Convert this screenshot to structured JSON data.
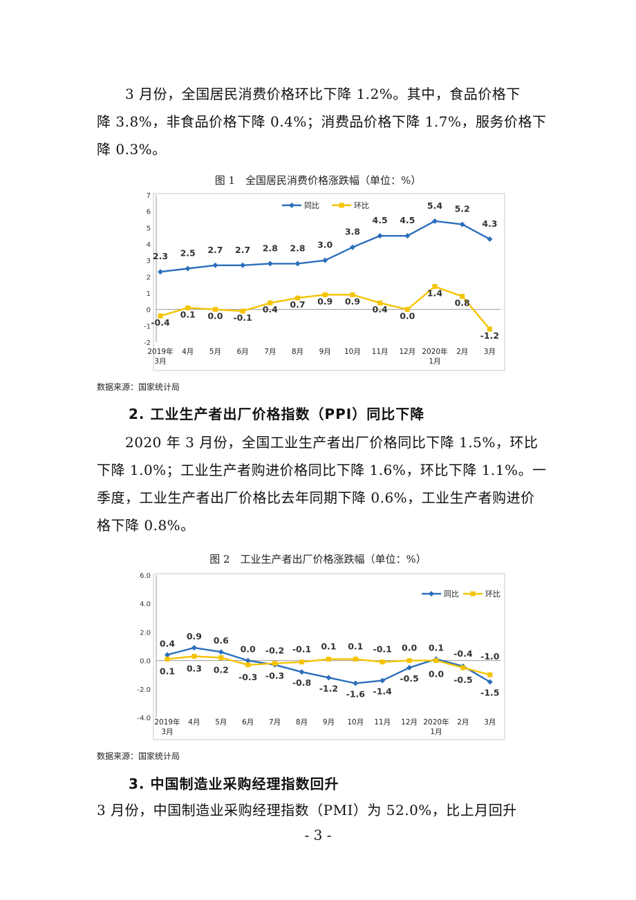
{
  "para1": {
    "lines": [
      "　　3 月份，全国居民消费价格环比下降 1.2%。其中，食品价格下",
      "降 3.8%，非食品价格下降 0.4%；消费品价格下降 1.7%，服务价格下",
      "降 0.3%。"
    ]
  },
  "figure1": {
    "caption": "图 1　全国居民消费价格涨跌幅（单位：%）",
    "source": "数据来源：国家统计局"
  },
  "section2": {
    "heading": "2.  工业生产者出厂价格指数（PPI）同比下降",
    "lines": [
      "　　2020 年 3 月份，全国工业生产者出厂价格同比下降 1.5%，环比",
      "下降 1.0%；工业生产者购进价格同比下降 1.6%，环比下降 1.1%。一",
      "季度，工业生产者出厂价格比去年同期下降 0.6%，工业生产者购进价",
      "格下降 0.8%。"
    ]
  },
  "figure2": {
    "caption": "图 2　工业生产者出厂价格涨跌幅（单位：%）",
    "source": "数据来源：国家统计局"
  },
  "section3": {
    "heading": "3.  中国制造业采购经理指数回升",
    "lines": [
      "3 月份，中国制造业采购经理指数（PMI）为 52.0%，比上月回升"
    ]
  },
  "page_number": "- 3 -",
  "chart_data": [
    {
      "type": "line",
      "categories": [
        [
          "2019年",
          "3月"
        ],
        [
          "4月"
        ],
        [
          "5月"
        ],
        [
          "6月"
        ],
        [
          "7月"
        ],
        [
          "8月"
        ],
        [
          "9月"
        ],
        [
          "10月"
        ],
        [
          "11月"
        ],
        [
          "12月"
        ],
        [
          "2020年",
          "1月"
        ],
        [
          "2月"
        ],
        [
          "3月"
        ]
      ],
      "series": [
        {
          "name": "同比",
          "color": "#2a6ebb",
          "marker": "diamond",
          "values": [
            2.3,
            2.5,
            2.7,
            2.7,
            2.8,
            2.8,
            3.0,
            3.8,
            4.5,
            4.5,
            5.4,
            5.2,
            4.3
          ],
          "labels": [
            "2.3",
            "2.5",
            "2.7",
            "2.7",
            "2.8",
            "2.8",
            "3.0",
            "3.8",
            "4.5",
            "4.5",
            "5.4",
            "5.2",
            "4.3"
          ]
        },
        {
          "name": "环比",
          "color": "#f5c300",
          "marker": "square",
          "values": [
            -0.4,
            0.1,
            0.0,
            -0.1,
            0.4,
            0.7,
            0.9,
            0.9,
            0.4,
            0.0,
            1.4,
            0.8,
            -1.2
          ],
          "labels": [
            "-0.4",
            "0.1",
            "0.0",
            "-0.1",
            "0.4",
            "0.7",
            "0.9",
            "0.9",
            "0.4",
            "0.0",
            "1.4",
            "0.8",
            "-1.2"
          ]
        }
      ],
      "yticks": [
        "7",
        "6",
        "5",
        "4",
        "3",
        "2",
        "1",
        "0",
        "-1",
        "-2"
      ],
      "ylim": [
        -2,
        7
      ],
      "grid": false,
      "legend": "top-left"
    },
    {
      "type": "line",
      "categories": [
        [
          "2019年",
          "3月"
        ],
        [
          "4月"
        ],
        [
          "5月"
        ],
        [
          "6月"
        ],
        [
          "7月"
        ],
        [
          "8月"
        ],
        [
          "9月"
        ],
        [
          "10月"
        ],
        [
          "11月"
        ],
        [
          "12月"
        ],
        [
          "2020年",
          "1月"
        ],
        [
          "2月"
        ],
        [
          "3月"
        ]
      ],
      "series": [
        {
          "name": "同比",
          "color": "#2a6ebb",
          "marker": "diamond",
          "values": [
            0.4,
            0.9,
            0.6,
            0.0,
            -0.3,
            -0.8,
            -1.2,
            -1.6,
            -1.4,
            -0.5,
            0.1,
            -0.4,
            -1.5
          ],
          "labels": [
            "0.4",
            "0.9",
            "0.6",
            "0.0",
            "-0.3",
            "-0.8",
            "-1.2",
            "-1.6",
            "-1.4",
            "-0.5",
            "0.1",
            "-0.4",
            "-1.5"
          ]
        },
        {
          "name": "环比",
          "color": "#f5c300",
          "marker": "square",
          "values": [
            0.1,
            0.3,
            0.2,
            -0.3,
            -0.2,
            -0.1,
            0.1,
            0.1,
            -0.1,
            0.0,
            0.0,
            -0.5,
            -1.0
          ],
          "labels": [
            "0.1",
            "0.3",
            "0.2",
            "-0.3",
            "-0.2",
            "-0.1",
            "0.1",
            "0.1",
            "-0.1",
            "0.0",
            "0.0",
            "-0.5",
            "-1.0"
          ]
        }
      ],
      "yticks": [
        "6.0",
        "4.0",
        "2.0",
        "0.0",
        "-2.0",
        "-4.0"
      ],
      "ylim": [
        -4,
        6
      ],
      "grid": false,
      "legend": "top-right"
    }
  ]
}
